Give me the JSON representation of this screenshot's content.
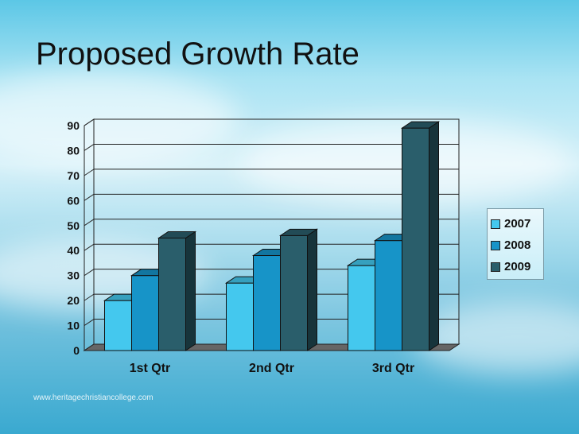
{
  "slide": {
    "title": "Proposed Growth Rate",
    "watermark": "www.heritagechristiancollege.com"
  },
  "colors": {
    "series": [
      "#44c8ee",
      "#1794c8",
      "#2a5e6b"
    ],
    "floor": "#666666"
  },
  "chart_data": {
    "type": "bar",
    "title": "",
    "xlabel": "",
    "ylabel": "",
    "categories": [
      "1st Qtr",
      "2nd Qtr",
      "3rd Qtr"
    ],
    "series": [
      {
        "name": "2007",
        "values": [
          20,
          27,
          34
        ]
      },
      {
        "name": "2008",
        "values": [
          30,
          38,
          44
        ]
      },
      {
        "name": "2009",
        "values": [
          45,
          46,
          89
        ]
      }
    ],
    "ylim": [
      0,
      90
    ],
    "yticks": [
      0,
      10,
      20,
      30,
      40,
      50,
      60,
      70,
      80,
      90
    ],
    "grid": true,
    "legend": "right",
    "style": "3d-clustered-column"
  }
}
